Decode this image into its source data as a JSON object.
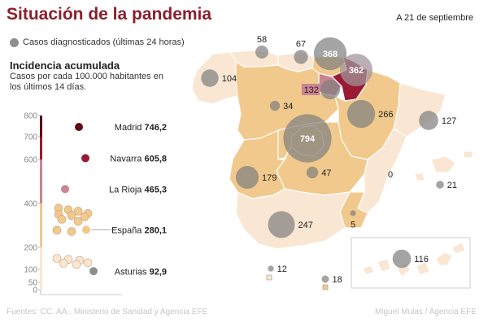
{
  "header": {
    "title": "Situación de la pandemia",
    "date": "A 21 de septiembre"
  },
  "legend": {
    "label": "Casos diagnosticados (últimas 24 horas)",
    "color": "#8f8f8f"
  },
  "incidence": {
    "title": "Incidencia acumulada",
    "description": "Casos por cada 100.000 habitantes en los últimos 14 días."
  },
  "footer": {
    "source": "Fuentes: CC. AA., Ministerio de Sanidad y Agencia EFE",
    "credit": "Miguel Mulas / Agencia EFE"
  },
  "colors": {
    "high": "#5e0d16",
    "navarra": "#9b1a33",
    "rioja": "#c98591",
    "mid": "#f1c98c",
    "low": "#f9e7d3",
    "bubble": "#8f8f8f"
  },
  "chart_data": [
    {
      "type": "scatter",
      "title": "",
      "ylim": [
        0,
        800
      ],
      "yticks": [
        "0",
        "50",
        "100",
        "200",
        "400",
        "600",
        "700",
        "800"
      ],
      "highlighted": [
        {
          "name": "Madrid",
          "value": "746,2",
          "y": 746.2
        },
        {
          "name": "Navarra",
          "value": "605,8",
          "y": 605.8
        },
        {
          "name": "La Rioja",
          "value": "465,3",
          "y": 465.3
        },
        {
          "name": "España",
          "value": "280,1",
          "y": 280.1
        },
        {
          "name": "Asturias",
          "value": "92,9",
          "y": 92.9
        }
      ],
      "others_y": [
        378,
        371,
        365,
        354,
        350,
        345,
        339,
        328,
        318,
        278,
        272,
        150,
        145,
        140,
        130,
        128,
        122
      ]
    },
    {
      "type": "scatter",
      "title": "",
      "series_name": "Casos diagnosticados (últimas 24 horas)",
      "regions": [
        {
          "name": "Galicia",
          "cases": 104
        },
        {
          "name": "Asturias",
          "cases": 58
        },
        {
          "name": "Cantabria",
          "cases": 67
        },
        {
          "name": "País Vasco",
          "cases": 368
        },
        {
          "name": "Navarra",
          "cases": 362
        },
        {
          "name": "La Rioja",
          "cases": 132
        },
        {
          "name": "Castilla y León",
          "cases": 34
        },
        {
          "name": "Aragón",
          "cases": 266
        },
        {
          "name": "Cataluña",
          "cases": 127
        },
        {
          "name": "Madrid",
          "cases": 794
        },
        {
          "name": "Extremadura",
          "cases": 179
        },
        {
          "name": "Castilla-La Mancha",
          "cases": 47
        },
        {
          "name": "Comunidad Valenciana",
          "cases": 0
        },
        {
          "name": "Baleares",
          "cases": 21
        },
        {
          "name": "Andalucía",
          "cases": 247
        },
        {
          "name": "Murcia",
          "cases": 5
        },
        {
          "name": "Ceuta",
          "cases": 12
        },
        {
          "name": "Melilla",
          "cases": 18
        },
        {
          "name": "Canarias",
          "cases": 116
        }
      ]
    }
  ]
}
